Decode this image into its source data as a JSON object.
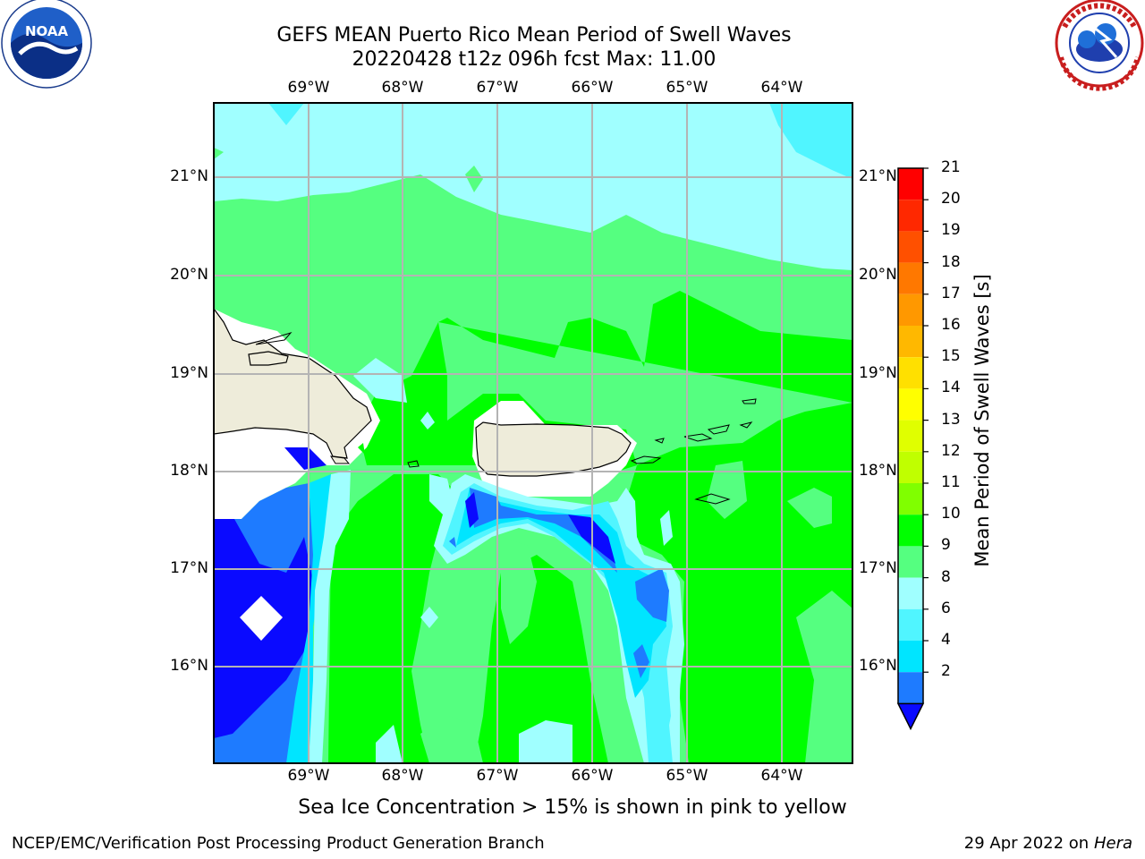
{
  "title": {
    "line1": "GEFS MEAN Puerto Rico Mean Period of Swell Waves",
    "line2": "20220428 t12z 096h fcst   Max: 11.00"
  },
  "map": {
    "lon_labels": [
      "69°W",
      "68°W",
      "67°W",
      "66°W",
      "65°W",
      "64°W"
    ],
    "lat_labels": [
      "21°N",
      "20°N",
      "19°N",
      "18°N",
      "17°N",
      "16°N"
    ],
    "land_color": "#eeecda",
    "ocean_colors": {
      "band_2_4": "#0a0aff",
      "band_4_6": "#1e7bff",
      "band_6_8": "#00e5ff",
      "band_8_9": "#50f5ff",
      "band_9_10": "#a0ffff",
      "band_10_11": "#55ff80",
      "band_11_12": "#00ff00"
    }
  },
  "colorbar": {
    "label": "Mean Period of Swell Waves [s]",
    "ticks": [
      "21",
      "20",
      "19",
      "18",
      "17",
      "16",
      "15",
      "14",
      "13",
      "12",
      "11",
      "10",
      "9",
      "8",
      "6",
      "4",
      "2"
    ],
    "colors": [
      "#ff0000",
      "#ff2800",
      "#ff5000",
      "#ff7800",
      "#ff9800",
      "#ffb800",
      "#ffe000",
      "#ffff00",
      "#e0ff00",
      "#c0ff00",
      "#80ff00",
      "#00ff00",
      "#55ff80",
      "#a0ffff",
      "#50f5ff",
      "#00e5ff",
      "#1e7bff",
      "#0a0aff"
    ]
  },
  "logos": {
    "noaa_text": "NOAA",
    "nws_text": "NATIONAL WEATHER SERVICE"
  },
  "note": "Sea Ice Concentration > 15% is shown in pink to yellow",
  "footer": {
    "left": "NCEP/EMC/Verification Post Processing Product Generation Branch",
    "right_date": "29 Apr 2022 on ",
    "right_host": "Hera"
  }
}
